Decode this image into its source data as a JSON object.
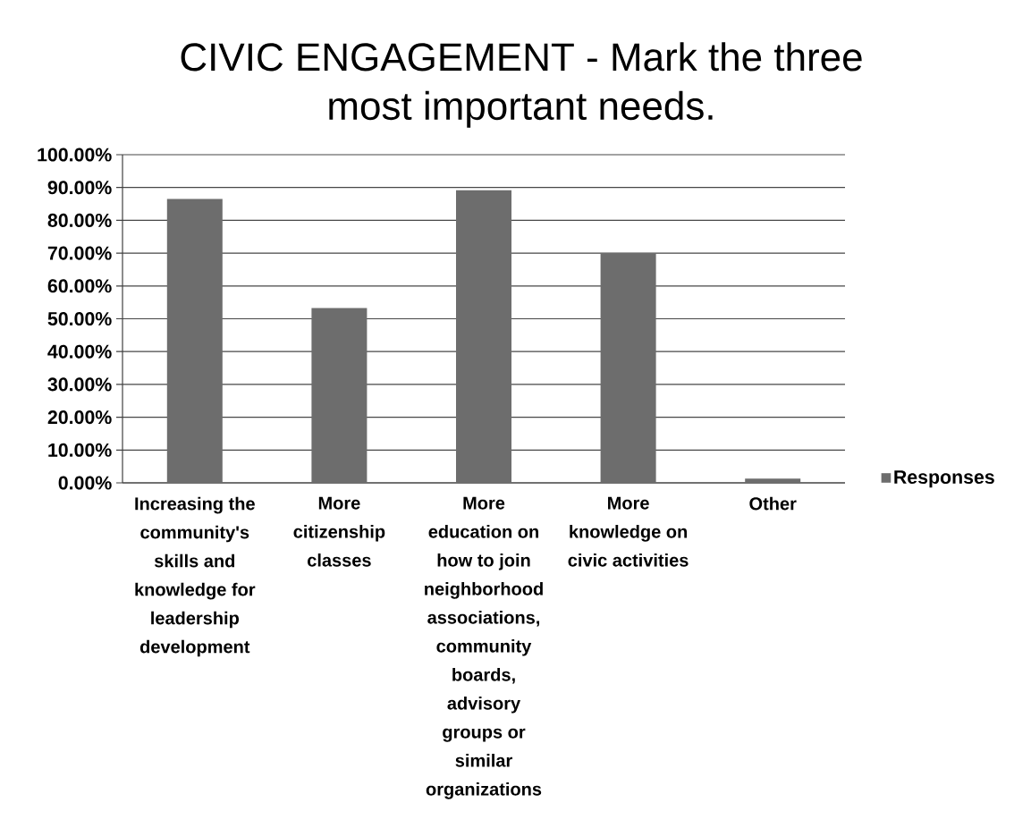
{
  "chart_data": {
    "type": "bar",
    "title": "CIVIC ENGAGEMENT - Mark the three most important needs.",
    "categories": [
      "Increasing the community's skills and knowledge for leadership development",
      "More citizenship classes",
      "More education on how to join neighborhood associations, community boards, advisory groups or similar organizations",
      "More knowledge on civic activities",
      "Other"
    ],
    "series": [
      {
        "name": "Responses",
        "color": "#6d6d6d",
        "values": [
          86.5,
          53.3,
          89.2,
          70,
          1.3
        ]
      }
    ],
    "ylim": [
      0,
      100
    ],
    "yticks": [
      {
        "value": 0,
        "label": "0.00%"
      },
      {
        "value": 10,
        "label": "10.00%"
      },
      {
        "value": 20,
        "label": "20.00%"
      },
      {
        "value": 30,
        "label": "30.00%"
      },
      {
        "value": 40,
        "label": "40.00%"
      },
      {
        "value": 50,
        "label": "50.00%"
      },
      {
        "value": 60,
        "label": "60.00%"
      },
      {
        "value": 70,
        "label": "70.00%"
      },
      {
        "value": 80,
        "label": "80.00%"
      },
      {
        "value": 90,
        "label": "90.00%"
      },
      {
        "value": 100,
        "label": "100.00%"
      }
    ],
    "grid": "y",
    "legend": "right"
  }
}
